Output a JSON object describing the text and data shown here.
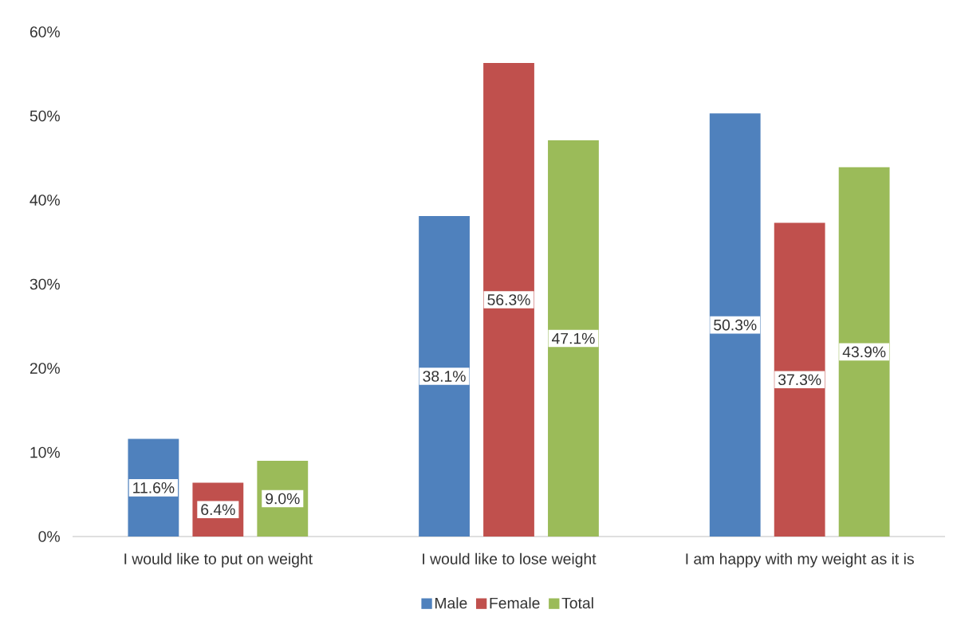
{
  "chart_data": {
    "type": "bar",
    "categories": [
      "I would like to put on weight",
      "I would like to lose weight",
      "I am happy with my weight as it is"
    ],
    "series": [
      {
        "name": "Male",
        "color": "#4f81bd",
        "values": [
          11.6,
          38.1,
          50.3
        ],
        "value_labels": [
          "11.6%",
          "38.1%",
          "50.3%"
        ]
      },
      {
        "name": "Female",
        "color": "#c0504d",
        "values": [
          6.4,
          56.3,
          37.3
        ],
        "value_labels": [
          "6.4%",
          "56.3%",
          "37.3%"
        ]
      },
      {
        "name": "Total",
        "color": "#9bbb59",
        "values": [
          9.0,
          47.1,
          43.9
        ],
        "value_labels": [
          "9.0%",
          "47.1%",
          "43.9%"
        ]
      }
    ],
    "ylim": [
      0,
      60
    ],
    "yticks": [
      {
        "value": 0,
        "label": "0%"
      },
      {
        "value": 10,
        "label": "10%"
      },
      {
        "value": 20,
        "label": "20%"
      },
      {
        "value": 30,
        "label": "30%"
      },
      {
        "value": 40,
        "label": "40%"
      },
      {
        "value": 50,
        "label": "50%"
      },
      {
        "value": 60,
        "label": "60%"
      }
    ],
    "grid": false,
    "legend": "bottom"
  }
}
